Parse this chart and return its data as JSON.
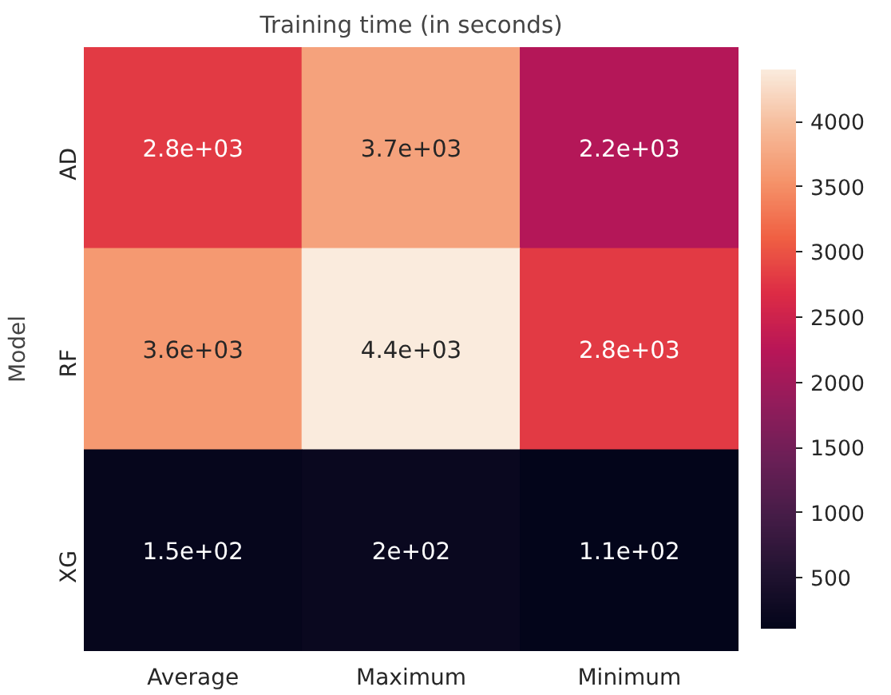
{
  "chart_data": {
    "type": "heatmap",
    "title": "Training time (in seconds)",
    "ylabel": "Model",
    "categories": [
      "Average",
      "Maximum",
      "Minimum"
    ],
    "y_categories": [
      "AD",
      "RF",
      "XG"
    ],
    "cells": [
      [
        2800,
        3700,
        2200
      ],
      [
        3600,
        4400,
        2800
      ],
      [
        150,
        200,
        110
      ]
    ],
    "cell_labels": [
      [
        "2.8e+03",
        "3.7e+03",
        "2.2e+03"
      ],
      [
        "3.6e+03",
        "4.4e+03",
        "2.8e+03"
      ],
      [
        "1.5e+02",
        "2e+02",
        "1.1e+02"
      ]
    ],
    "clim": [
      110,
      4400
    ],
    "cticks": [
      500,
      1000,
      1500,
      2000,
      2500,
      3000,
      3500,
      4000
    ]
  }
}
